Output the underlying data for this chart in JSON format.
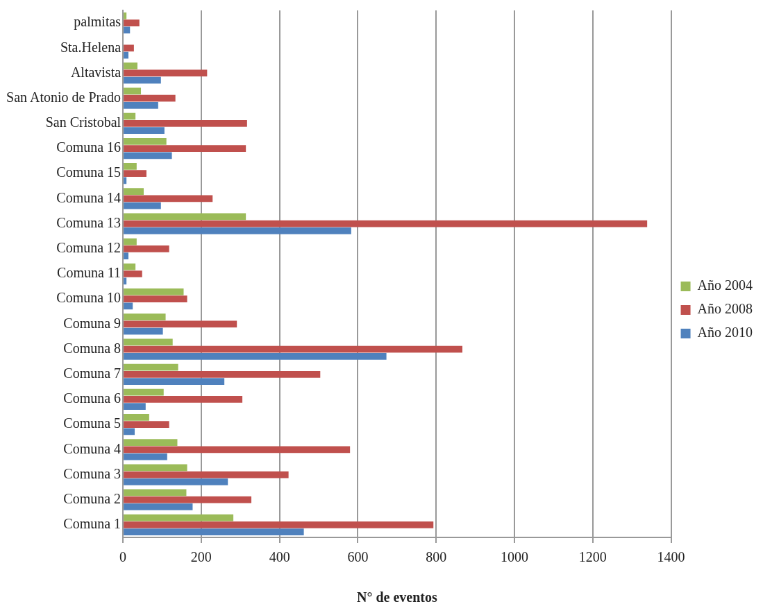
{
  "chart_data": {
    "type": "bar",
    "orientation": "horizontal",
    "xlabel": "N° de eventos",
    "categories": [
      "palmitas",
      "Sta.Helena",
      "Altavista",
      "San Atonio de Prado",
      "San Cristobal",
      "Comuna 16",
      "Comuna 15",
      "Comuna 14",
      "Comuna 13",
      "Comuna 12",
      "Comuna 11",
      "Comuna 10",
      "Comuna 9",
      "Comuna 8",
      "Comuna 7",
      "Comuna 6",
      "Comuna 5",
      "Comuna 4",
      "Comuna 3",
      "Comuna 2",
      "Comuna 1"
    ],
    "series": [
      {
        "name": "Año 2004",
        "color": "#9bbb59",
        "values": [
          9,
          null,
          37,
          46,
          32,
          111,
          35,
          53,
          314,
          35,
          32,
          155,
          109,
          127,
          141,
          104,
          67,
          139,
          164,
          162,
          282
        ]
      },
      {
        "name": "Año 2008",
        "color": "#c0504d",
        "values": [
          42,
          28,
          215,
          134,
          317,
          314,
          60,
          229,
          1339,
          118,
          49,
          164,
          291,
          867,
          504,
          305,
          118,
          580,
          423,
          328,
          793
        ]
      },
      {
        "name": "Año 2010",
        "color": "#4f81bd",
        "values": [
          18,
          14,
          97,
          90,
          106,
          125,
          9,
          97,
          583,
          14,
          9,
          25,
          102,
          673,
          259,
          58,
          30,
          113,
          268,
          178,
          462
        ]
      }
    ],
    "xlim": [
      0,
      1400
    ],
    "xticks": [
      0,
      200,
      400,
      600,
      800,
      1000,
      1200,
      1400
    ],
    "grid": "x",
    "legend": "right"
  }
}
